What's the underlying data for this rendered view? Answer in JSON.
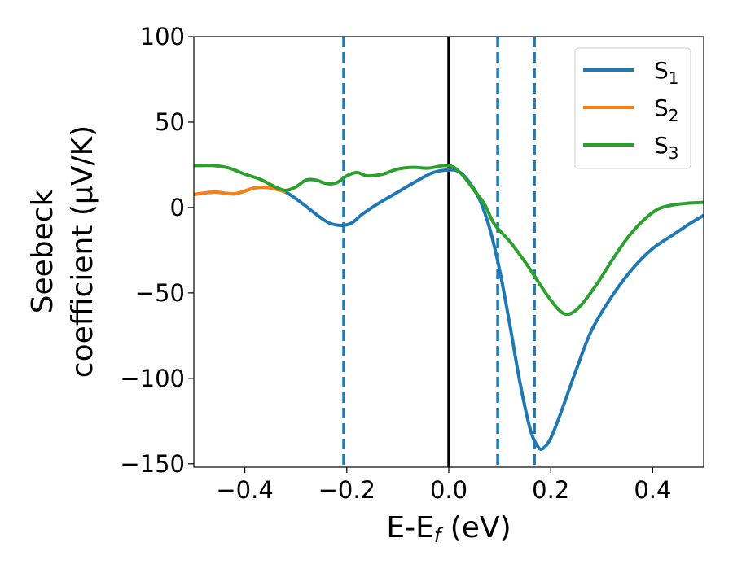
{
  "chart_data": {
    "type": "line",
    "xlabel": {
      "base": "E-E",
      "sub": "f",
      "rest": " (eV)"
    },
    "ylabel": {
      "line1": "Seebeck",
      "line2": "coefficient  (μV/K)"
    },
    "xlim": [
      -0.5,
      0.5
    ],
    "ylim": [
      -152,
      100
    ],
    "xticks": [
      -0.4,
      -0.2,
      0.0,
      0.2,
      0.4
    ],
    "xtick_labels": [
      "−0.4",
      "−0.2",
      "0.0",
      "0.2",
      "0.4"
    ],
    "yticks": [
      100,
      50,
      0,
      -50,
      -100,
      -150
    ],
    "ytick_labels": [
      "100",
      "50",
      "0",
      "−50",
      "−100",
      "−150"
    ],
    "grid": false,
    "legend_position": "top-right",
    "vertical_lines": [
      {
        "x": -0.206,
        "style": "dashed",
        "color": "#1f77b4"
      },
      {
        "x": 0.0,
        "style": "solid",
        "color": "#000000"
      },
      {
        "x": 0.096,
        "style": "dashed",
        "color": "#1f77b4"
      },
      {
        "x": 0.168,
        "style": "dashed",
        "color": "#1f77b4"
      }
    ],
    "series": [
      {
        "label_base": "S",
        "label_sub": "1",
        "color": "#1f77b4",
        "points": [
          [
            -0.5,
            7.6
          ],
          [
            -0.46,
            9
          ],
          [
            -0.42,
            8
          ],
          [
            -0.38,
            11.5
          ],
          [
            -0.35,
            11.5
          ],
          [
            -0.32,
            9
          ],
          [
            -0.29,
            3
          ],
          [
            -0.26,
            -4
          ],
          [
            -0.235,
            -9
          ],
          [
            -0.21,
            -10.5
          ],
          [
            -0.19,
            -9
          ],
          [
            -0.17,
            -4
          ],
          [
            -0.14,
            2
          ],
          [
            -0.1,
            9
          ],
          [
            -0.06,
            16
          ],
          [
            -0.03,
            20.5
          ],
          [
            0.0,
            22
          ],
          [
            0.02,
            21
          ],
          [
            0.04,
            15
          ],
          [
            0.06,
            5
          ],
          [
            0.08,
            -12
          ],
          [
            0.1,
            -37
          ],
          [
            0.12,
            -69
          ],
          [
            0.14,
            -103
          ],
          [
            0.16,
            -130
          ],
          [
            0.175,
            -140
          ],
          [
            0.185,
            -141
          ],
          [
            0.2,
            -135
          ],
          [
            0.22,
            -120
          ],
          [
            0.25,
            -95
          ],
          [
            0.28,
            -72
          ],
          [
            0.32,
            -52
          ],
          [
            0.36,
            -36
          ],
          [
            0.4,
            -24
          ],
          [
            0.44,
            -16
          ],
          [
            0.47,
            -10
          ],
          [
            0.5,
            -4.6
          ]
        ]
      },
      {
        "label_base": "S",
        "label_sub": "2",
        "color": "#ff7f0e",
        "points": [
          [
            -0.5,
            7.6
          ],
          [
            -0.46,
            9
          ],
          [
            -0.42,
            8
          ],
          [
            -0.38,
            11.5
          ],
          [
            -0.35,
            11.5
          ],
          [
            -0.32,
            9
          ]
        ]
      },
      {
        "label_base": "S",
        "label_sub": "3",
        "color": "#2ca02c",
        "points": [
          [
            -0.5,
            24.5
          ],
          [
            -0.46,
            24.5
          ],
          [
            -0.43,
            23
          ],
          [
            -0.4,
            19.5
          ],
          [
            -0.37,
            16.5
          ],
          [
            -0.34,
            12
          ],
          [
            -0.32,
            10
          ],
          [
            -0.3,
            12
          ],
          [
            -0.28,
            16
          ],
          [
            -0.26,
            16
          ],
          [
            -0.24,
            14
          ],
          [
            -0.22,
            14.5
          ],
          [
            -0.2,
            18.5
          ],
          [
            -0.18,
            20.5
          ],
          [
            -0.16,
            18.5
          ],
          [
            -0.13,
            19.5
          ],
          [
            -0.1,
            22.5
          ],
          [
            -0.07,
            23.5
          ],
          [
            -0.04,
            23
          ],
          [
            -0.01,
            24.5
          ],
          [
            0.01,
            23.5
          ],
          [
            0.03,
            18
          ],
          [
            0.05,
            10
          ],
          [
            0.07,
            2
          ],
          [
            0.09,
            -10
          ],
          [
            0.12,
            -20
          ],
          [
            0.15,
            -32
          ],
          [
            0.17,
            -41
          ],
          [
            0.19,
            -50
          ],
          [
            0.21,
            -58
          ],
          [
            0.225,
            -62
          ],
          [
            0.24,
            -62
          ],
          [
            0.26,
            -57
          ],
          [
            0.29,
            -45
          ],
          [
            0.32,
            -31
          ],
          [
            0.35,
            -18
          ],
          [
            0.38,
            -8
          ],
          [
            0.41,
            -1
          ],
          [
            0.44,
            1.5
          ],
          [
            0.47,
            2.5
          ],
          [
            0.5,
            3
          ]
        ]
      }
    ]
  }
}
